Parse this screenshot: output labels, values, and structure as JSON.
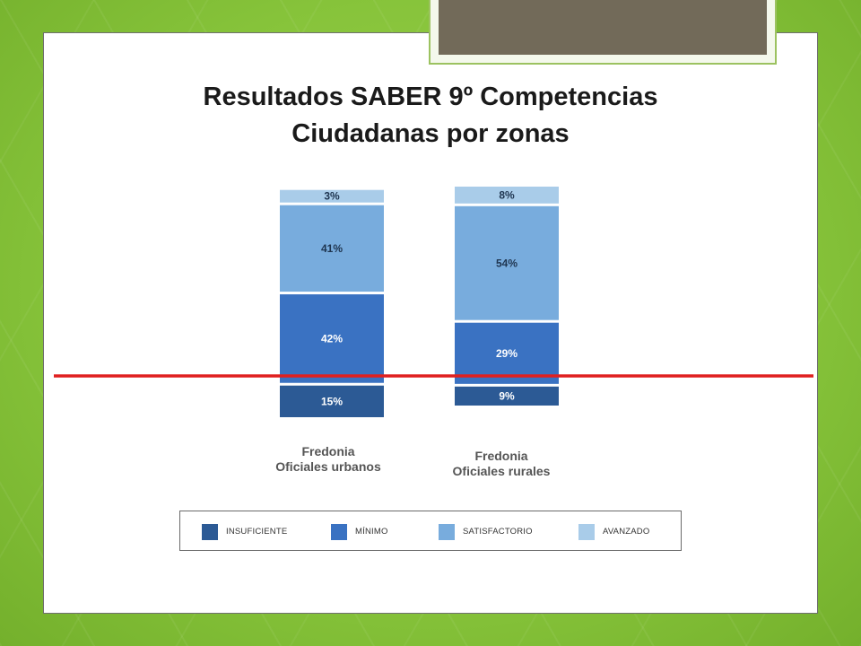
{
  "title_line1": "Resultados SABER 9º Competencias",
  "title_line2": "Ciudadanas por zonas",
  "colors": {
    "INSUFICIENTE": "#2c5a95",
    "MÍNIMO": "#3a72c2",
    "SATISFACTORIO": "#78acdd",
    "AVANZADO": "#a9cce9",
    "threshold_line": "#e02020"
  },
  "chart_data": {
    "type": "bar",
    "stacked": true,
    "categories": [
      "Fredonia\nOficiales urbanos",
      "Fredonia\nOficiales rurales"
    ],
    "series": [
      {
        "name": "INSUFICIENTE",
        "values": [
          15,
          9
        ],
        "labels": [
          "15%",
          "9%"
        ]
      },
      {
        "name": "MÍNIMO",
        "values": [
          42,
          29
        ],
        "labels": [
          "42%",
          "29%"
        ]
      },
      {
        "name": "SATISFACTORIO",
        "values": [
          41,
          54
        ],
        "labels": [
          "41%",
          "54%"
        ]
      },
      {
        "name": "AVANZADO",
        "values": [
          3,
          8
        ],
        "labels": [
          "3%",
          "8%"
        ]
      }
    ],
    "legend": [
      "INSUFICIENTE",
      "MÍNIMO",
      "SATISFACTORIO",
      "AVANZADO"
    ],
    "legend_position": "bottom",
    "ylim": [
      0,
      100
    ],
    "grid": false
  }
}
